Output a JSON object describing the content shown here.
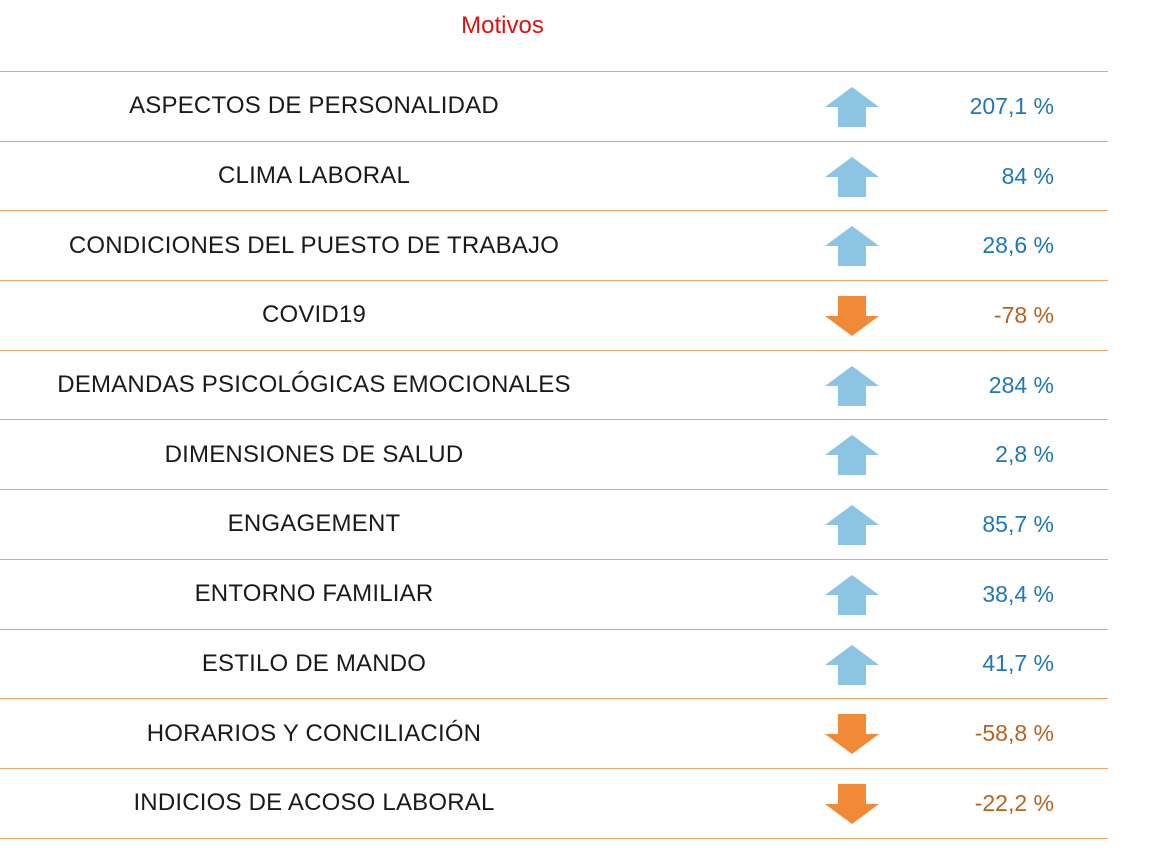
{
  "title": "Motivos",
  "colors": {
    "up_arrow": "#8cc4e4",
    "down_arrow": "#f08a36",
    "up_text": "#1f77b8",
    "down_text": "#b8621e",
    "rule": "#f0a66a",
    "title": "#e01010"
  },
  "rows": [
    {
      "label": "ASPECTOS DE PERSONALIDAD",
      "direction": "up",
      "icon": "arrow-up-icon",
      "value": "207,1 %"
    },
    {
      "label": "CLIMA LABORAL",
      "direction": "up",
      "icon": "arrow-up-icon",
      "value": "84 %"
    },
    {
      "label": "CONDICIONES DEL PUESTO DE TRABAJO",
      "direction": "up",
      "icon": "arrow-up-icon",
      "value": "28,6 %"
    },
    {
      "label": "COVID19",
      "direction": "down",
      "icon": "arrow-down-icon",
      "value": "-78 %"
    },
    {
      "label": "DEMANDAS PSICOLÓGICAS EMOCIONALES",
      "direction": "up",
      "icon": "arrow-up-icon",
      "value": "284 %"
    },
    {
      "label": "DIMENSIONES DE SALUD",
      "direction": "up",
      "icon": "arrow-up-icon",
      "value": "2,8 %"
    },
    {
      "label": "ENGAGEMENT",
      "direction": "up",
      "icon": "arrow-up-icon",
      "value": "85,7 %"
    },
    {
      "label": "ENTORNO FAMILIAR",
      "direction": "up",
      "icon": "arrow-up-icon",
      "value": "38,4 %"
    },
    {
      "label": "ESTILO DE MANDO",
      "direction": "up",
      "icon": "arrow-up-icon",
      "value": "41,7 %"
    },
    {
      "label": "HORARIOS Y CONCILIACIÓN",
      "direction": "down",
      "icon": "arrow-down-icon",
      "value": "-58,8 %"
    },
    {
      "label": "INDICIOS DE ACOSO LABORAL",
      "direction": "down",
      "icon": "arrow-down-icon",
      "value": "-22,2 %"
    }
  ]
}
